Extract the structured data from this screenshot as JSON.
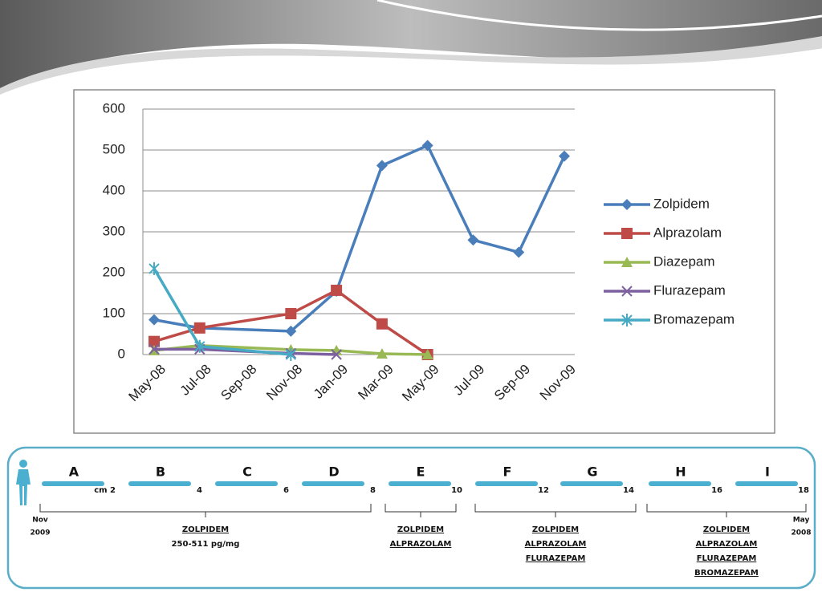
{
  "chart_data": {
    "type": "line",
    "categories": [
      "May-08",
      "Jul-08",
      "Sep-08",
      "Nov-08",
      "Jan-09",
      "Mar-09",
      "May-09",
      "Jul-09",
      "Sep-09",
      "Nov-09"
    ],
    "ylim": [
      0,
      600
    ],
    "yticks": [
      0,
      100,
      200,
      300,
      400,
      500,
      600
    ],
    "grid": true,
    "legend": "right",
    "series": [
      {
        "name": "Zolpidem",
        "color": "#4a7ebb",
        "marker": "diamond",
        "x": [
          "May-08",
          "Jul-08",
          "Nov-08",
          "Jan-09",
          "Mar-09",
          "May-09",
          "Jul-09",
          "Sep-09",
          "Nov-09"
        ],
        "values": [
          85,
          65,
          57,
          155,
          462,
          511,
          280,
          250,
          485
        ]
      },
      {
        "name": "Alprazolam",
        "color": "#be4b48",
        "marker": "square",
        "x": [
          "May-08",
          "Jul-08",
          "Nov-08",
          "Jan-09",
          "Mar-09",
          "May-09"
        ],
        "values": [
          32,
          65,
          100,
          157,
          75,
          0
        ]
      },
      {
        "name": "Diazepam",
        "color": "#98b954",
        "marker": "triangle",
        "x": [
          "May-08",
          "Jul-08",
          "Nov-08",
          "Jan-09",
          "Mar-09",
          "May-09"
        ],
        "values": [
          10,
          22,
          12,
          10,
          2,
          0
        ]
      },
      {
        "name": "Flurazepam",
        "color": "#7d60a0",
        "marker": "x",
        "x": [
          "May-08",
          "Jul-08",
          "Nov-08",
          "Jan-09"
        ],
        "values": [
          13,
          13,
          3,
          0
        ]
      },
      {
        "name": "Bromazepam",
        "color": "#46aac5",
        "marker": "star",
        "x": [
          "May-08",
          "Jul-08",
          "Nov-08"
        ],
        "values": [
          210,
          20,
          0
        ]
      }
    ]
  },
  "timeline": {
    "segments": [
      {
        "letter": "A",
        "label": "cm 2"
      },
      {
        "letter": "B",
        "label": "4"
      },
      {
        "letter": "C",
        "label": "6"
      },
      {
        "letter": "D",
        "label": "8"
      },
      {
        "letter": "E",
        "label": "10"
      },
      {
        "letter": "F",
        "label": "12"
      },
      {
        "letter": "G",
        "label": "14"
      },
      {
        "letter": "H",
        "label": "16"
      },
      {
        "letter": "I",
        "label": "18"
      }
    ],
    "start": {
      "month": "Nov",
      "year": "2009"
    },
    "end": {
      "month": "May",
      "year": "2008"
    },
    "groups": [
      {
        "lines": [
          "ZOLPIDEM",
          "250-511 pg/mg"
        ]
      },
      {
        "lines": [
          "ZOLPIDEM",
          "ALPRAZOLAM"
        ]
      },
      {
        "lines": [
          "ZOLPIDEM",
          "ALPRAZOLAM",
          "FLURAZEPAM"
        ]
      },
      {
        "lines": [
          "ZOLPIDEM",
          "ALPRAZOLAM",
          "FLURAZEPAM",
          "BROMAZEPAM"
        ]
      }
    ]
  }
}
